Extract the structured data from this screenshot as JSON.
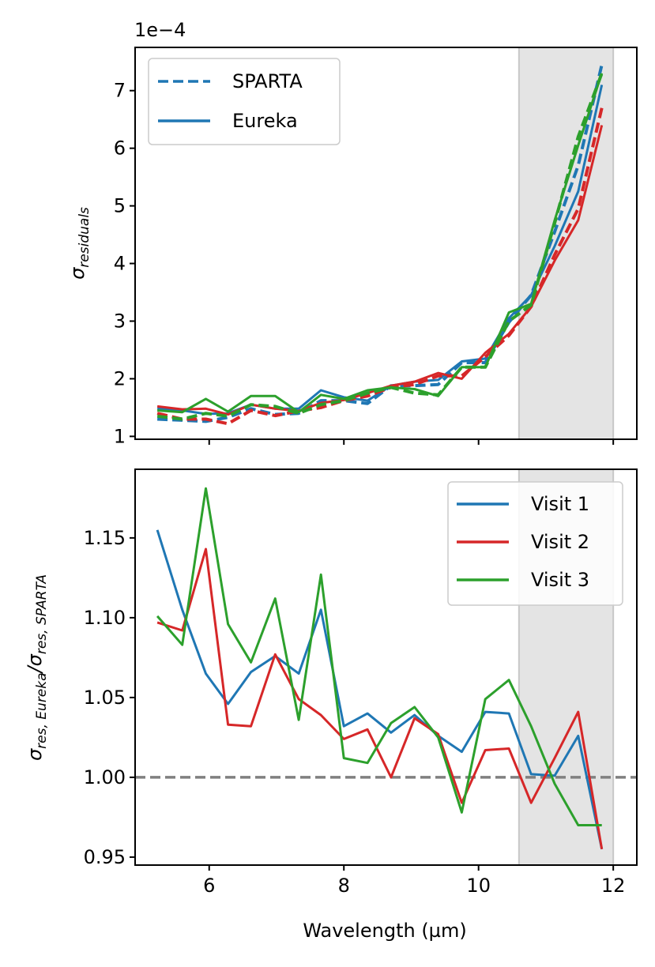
{
  "chart_data": [
    {
      "type": "line",
      "panel": "top",
      "offset_text": "1e−4",
      "ylabel_symbol": "σ",
      "ylabel_subscript": "residuals",
      "xlabel": "",
      "xlim": [
        4.9,
        12.35
      ],
      "ylim": [
        0.95,
        7.75
      ],
      "yticks": [
        1,
        2,
        3,
        4,
        5,
        6,
        7
      ],
      "ytick_labels": [
        "1",
        "2",
        "3",
        "4",
        "5",
        "6",
        "7"
      ],
      "xticks": [
        6,
        8,
        10,
        12
      ],
      "shaded_region": [
        10.6,
        12.0
      ],
      "legend": {
        "position": "top-left",
        "entries": [
          {
            "label": "SPARTA",
            "style": "dashed",
            "color": "#1f77b4"
          },
          {
            "label": "Eureka",
            "style": "solid",
            "color": "#1f77b4"
          }
        ]
      },
      "x": [
        5.23,
        5.6,
        5.95,
        6.28,
        6.62,
        6.98,
        7.33,
        7.66,
        8.0,
        8.35,
        8.7,
        9.05,
        9.4,
        9.75,
        10.1,
        10.45,
        10.78,
        11.13,
        11.48,
        11.83
      ],
      "series": [
        {
          "name": "Visit 1 SPARTA",
          "color": "#1f77b4",
          "style": "dashed",
          "values": [
            1.3,
            1.28,
            1.26,
            1.33,
            1.48,
            1.38,
            1.4,
            1.62,
            1.62,
            1.57,
            1.88,
            1.88,
            1.9,
            2.28,
            2.28,
            2.98,
            3.45,
            4.55,
            5.7,
            7.45
          ]
        },
        {
          "name": "Visit 1 Eureka",
          "color": "#1f77b4",
          "style": "solid",
          "values": [
            1.48,
            1.45,
            1.39,
            1.4,
            1.55,
            1.48,
            1.48,
            1.8,
            1.68,
            1.62,
            1.88,
            1.95,
            1.98,
            2.3,
            2.35,
            3.05,
            3.45,
            4.3,
            5.25,
            7.1
          ]
        },
        {
          "name": "Visit 2 SPARTA",
          "color": "#d62728",
          "style": "dashed",
          "values": [
            1.4,
            1.3,
            1.3,
            1.22,
            1.45,
            1.36,
            1.44,
            1.5,
            1.62,
            1.7,
            1.85,
            1.9,
            2.05,
            2.05,
            2.38,
            2.75,
            3.25,
            4.15,
            4.95,
            6.7
          ]
        },
        {
          "name": "Visit 2 Eureka",
          "color": "#d62728",
          "style": "solid",
          "values": [
            1.52,
            1.47,
            1.48,
            1.38,
            1.55,
            1.48,
            1.44,
            1.58,
            1.63,
            1.75,
            1.88,
            1.95,
            2.1,
            2.0,
            2.45,
            2.78,
            3.25,
            4.05,
            4.75,
            6.4
          ]
        },
        {
          "name": "Visit 3 SPARTA",
          "color": "#2ca02c",
          "style": "dashed",
          "values": [
            1.35,
            1.3,
            1.4,
            1.35,
            1.55,
            1.52,
            1.4,
            1.55,
            1.62,
            1.75,
            1.85,
            1.75,
            1.72,
            2.2,
            2.2,
            3.0,
            3.28,
            4.7,
            6.2,
            7.3
          ]
        },
        {
          "name": "Visit 3 Eureka",
          "color": "#2ca02c",
          "style": "solid",
          "values": [
            1.45,
            1.42,
            1.65,
            1.43,
            1.7,
            1.7,
            1.42,
            1.72,
            1.65,
            1.8,
            1.85,
            1.82,
            1.7,
            2.2,
            2.2,
            3.15,
            3.3,
            4.75,
            6.05,
            7.3
          ]
        }
      ]
    },
    {
      "type": "line",
      "panel": "bottom",
      "xlabel": "Wavelength (µm)",
      "ylabel_parts": [
        "σ",
        "res, Eureka",
        "/σ",
        "res, SPARTA"
      ],
      "xlim": [
        4.9,
        12.35
      ],
      "ylim": [
        0.945,
        1.193
      ],
      "yticks": [
        0.95,
        1.0,
        1.05,
        1.1,
        1.15
      ],
      "ytick_labels": [
        "0.95",
        "1.00",
        "1.05",
        "1.10",
        "1.15"
      ],
      "xticks": [
        6,
        8,
        10,
        12
      ],
      "xtick_labels": [
        "6",
        "8",
        "10",
        "12"
      ],
      "shaded_region": [
        10.6,
        12.0
      ],
      "reference_line": {
        "y": 1.0,
        "color": "#808080",
        "style": "dashed"
      },
      "legend": {
        "position": "top-right",
        "entries": [
          {
            "label": "Visit 1",
            "color": "#1f77b4"
          },
          {
            "label": "Visit 2",
            "color": "#d62728"
          },
          {
            "label": "Visit 3",
            "color": "#2ca02c"
          }
        ]
      },
      "x": [
        5.23,
        5.6,
        5.95,
        6.28,
        6.62,
        6.98,
        7.33,
        7.66,
        8.0,
        8.35,
        8.7,
        9.05,
        9.4,
        9.75,
        10.1,
        10.45,
        10.78,
        11.13,
        11.48,
        11.83
      ],
      "series": [
        {
          "name": "Visit 1",
          "color": "#1f77b4",
          "values": [
            1.155,
            1.105,
            1.065,
            1.046,
            1.066,
            1.076,
            1.065,
            1.105,
            1.032,
            1.04,
            1.028,
            1.039,
            1.026,
            1.016,
            1.041,
            1.04,
            1.002,
            1.001,
            1.026,
            0.955
          ]
        },
        {
          "name": "Visit 2",
          "color": "#d62728",
          "values": [
            1.097,
            1.092,
            1.143,
            1.033,
            1.032,
            1.077,
            1.049,
            1.039,
            1.024,
            1.03,
            1.0,
            1.037,
            1.027,
            0.984,
            1.017,
            1.018,
            0.984,
            1.012,
            1.041,
            0.955
          ]
        },
        {
          "name": "Visit 3",
          "color": "#2ca02c",
          "values": [
            1.101,
            1.083,
            1.181,
            1.096,
            1.072,
            1.112,
            1.036,
            1.127,
            1.012,
            1.009,
            1.034,
            1.044,
            1.025,
            0.978,
            1.049,
            1.061,
            1.032,
            0.996,
            0.97,
            0.97
          ]
        }
      ]
    }
  ]
}
